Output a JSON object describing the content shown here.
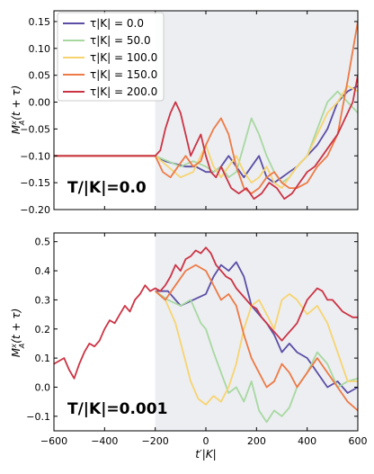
{
  "chart_data": [
    {
      "type": "line",
      "panel_label": "T/|K|=0.0",
      "ylabel": "M_A^x(t + τ)",
      "xlabel": "",
      "xlim": [
        -600,
        600
      ],
      "ylim": [
        -0.2,
        0.17
      ],
      "yticks": [
        -0.2,
        -0.15,
        -0.1,
        -0.05,
        0.0,
        0.05,
        0.1,
        0.15
      ],
      "ytick_labels": [
        "−0.20",
        "−0.15",
        "−0.10",
        "−0.05",
        "0.00",
        "0.05",
        "0.10",
        "0.15"
      ],
      "xticks": [
        -600,
        -400,
        -200,
        0,
        200,
        400,
        600
      ],
      "shaded_region": [
        -200,
        600
      ],
      "legend": {
        "placement": "top-left",
        "entries": [
          "τ|K| = 0.0",
          "τ|K| = 50.0",
          "τ|K| = 100.0",
          "τ|K| = 150.0",
          "τ|K| = 200.0"
        ]
      },
      "series": [
        {
          "name": "τ|K| = 0.0",
          "color": "#5b4ea5",
          "x": [
            -600,
            -200,
            -160,
            -120,
            -80,
            -40,
            0,
            30,
            60,
            90,
            120,
            150,
            180,
            210,
            240,
            270,
            300,
            330,
            360,
            400,
            440,
            480,
            520,
            560,
            600
          ],
          "y": [
            -0.1,
            -0.1,
            -0.11,
            -0.115,
            -0.12,
            -0.12,
            -0.13,
            -0.13,
            -0.12,
            -0.1,
            -0.12,
            -0.14,
            -0.12,
            -0.1,
            -0.14,
            -0.15,
            -0.14,
            -0.13,
            -0.12,
            -0.1,
            -0.08,
            -0.05,
            0.0,
            0.02,
            0.03
          ]
        },
        {
          "name": "τ|K| = 50.0",
          "color": "#a8d8a0",
          "x": [
            -600,
            -200,
            -150,
            -100,
            -50,
            0,
            30,
            60,
            90,
            120,
            150,
            180,
            210,
            240,
            270,
            300,
            330,
            360,
            400,
            440,
            480,
            520,
            560,
            600
          ],
          "y": [
            -0.1,
            -0.1,
            -0.11,
            -0.12,
            -0.11,
            -0.12,
            -0.13,
            -0.12,
            -0.14,
            -0.13,
            -0.08,
            -0.03,
            -0.06,
            -0.1,
            -0.13,
            -0.15,
            -0.14,
            -0.12,
            -0.1,
            -0.05,
            0.0,
            0.02,
            0.0,
            -0.02
          ]
        },
        {
          "name": "τ|K| = 100.0",
          "color": "#f7d470",
          "x": [
            -600,
            -200,
            -150,
            -100,
            -50,
            -20,
            0,
            30,
            60,
            90,
            120,
            150,
            180,
            210,
            240,
            270,
            300,
            330,
            360,
            400,
            440,
            480,
            520,
            560,
            600
          ],
          "y": [
            -0.1,
            -0.1,
            -0.12,
            -0.14,
            -0.13,
            -0.1,
            -0.08,
            -0.12,
            -0.14,
            -0.12,
            -0.1,
            -0.13,
            -0.15,
            -0.14,
            -0.12,
            -0.15,
            -0.16,
            -0.14,
            -0.12,
            -0.1,
            -0.06,
            -0.02,
            0.0,
            0.03,
            0.02
          ]
        },
        {
          "name": "τ|K| = 150.0",
          "color": "#ee7a45",
          "x": [
            -600,
            -200,
            -170,
            -140,
            -110,
            -80,
            -50,
            -20,
            0,
            30,
            60,
            90,
            120,
            150,
            180,
            210,
            240,
            270,
            300,
            330,
            360,
            400,
            440,
            480,
            520,
            560,
            600
          ],
          "y": [
            -0.1,
            -0.1,
            -0.13,
            -0.14,
            -0.12,
            -0.1,
            -0.12,
            -0.11,
            -0.08,
            -0.05,
            -0.03,
            -0.06,
            -0.12,
            -0.16,
            -0.17,
            -0.16,
            -0.14,
            -0.13,
            -0.15,
            -0.16,
            -0.16,
            -0.15,
            -0.12,
            -0.1,
            -0.06,
            0.04,
            0.15
          ]
        },
        {
          "name": "τ|K| = 200.0",
          "color": "#cc3344",
          "x": [
            -600,
            -200,
            -180,
            -160,
            -140,
            -120,
            -100,
            -80,
            -60,
            -40,
            -20,
            0,
            20,
            40,
            60,
            80,
            100,
            130,
            160,
            190,
            220,
            250,
            280,
            310,
            340,
            370,
            400,
            430,
            460,
            490,
            520,
            550,
            580,
            600
          ],
          "y": [
            -0.1,
            -0.1,
            -0.09,
            -0.05,
            -0.02,
            0.0,
            -0.02,
            -0.06,
            -0.1,
            -0.08,
            -0.06,
            -0.1,
            -0.13,
            -0.14,
            -0.12,
            -0.14,
            -0.16,
            -0.17,
            -0.16,
            -0.18,
            -0.17,
            -0.15,
            -0.16,
            -0.18,
            -0.17,
            -0.15,
            -0.13,
            -0.12,
            -0.1,
            -0.08,
            -0.06,
            -0.03,
            0.0,
            0.05
          ]
        }
      ]
    },
    {
      "type": "line",
      "panel_label": "T/|K|=0.001",
      "ylabel": "M_A^x(t + τ)",
      "xlabel": "t′|K|",
      "xlim": [
        -600,
        600
      ],
      "ylim": [
        -0.15,
        0.53
      ],
      "yticks": [
        -0.1,
        0.0,
        0.1,
        0.2,
        0.3,
        0.4,
        0.5
      ],
      "ytick_labels": [
        "−0.1",
        "0.0",
        "0.1",
        "0.2",
        "0.3",
        "0.4",
        "0.5"
      ],
      "xticks": [
        -600,
        -400,
        -200,
        0,
        200,
        400,
        600
      ],
      "xtick_labels": [
        "−600",
        "−400",
        "−200",
        "0",
        "200",
        "400",
        "600"
      ],
      "shaded_region": [
        -200,
        600
      ],
      "series": [
        {
          "name": "τ|K| = 0.0",
          "color": "#5b4ea5",
          "x": [
            -200,
            -150,
            -100,
            -50,
            0,
            30,
            60,
            90,
            120,
            150,
            180,
            210,
            240,
            270,
            300,
            330,
            360,
            400,
            440,
            480,
            520,
            560,
            600
          ],
          "y": [
            0.33,
            0.33,
            0.28,
            0.3,
            0.32,
            0.38,
            0.42,
            0.4,
            0.43,
            0.38,
            0.28,
            0.25,
            0.22,
            0.18,
            0.12,
            0.15,
            0.12,
            0.1,
            0.05,
            0.0,
            0.02,
            -0.02,
            0.0
          ]
        },
        {
          "name": "τ|K| = 50.0",
          "color": "#a8d8a0",
          "x": [
            -200,
            -150,
            -100,
            -60,
            -20,
            0,
            30,
            60,
            90,
            120,
            150,
            180,
            210,
            240,
            270,
            300,
            330,
            360,
            400,
            440,
            480,
            520,
            560,
            600
          ],
          "y": [
            0.33,
            0.3,
            0.28,
            0.3,
            0.22,
            0.2,
            0.12,
            0.05,
            -0.02,
            0.0,
            -0.05,
            0.02,
            -0.08,
            -0.12,
            -0.08,
            -0.1,
            -0.07,
            0.0,
            0.05,
            0.12,
            0.08,
            0.0,
            0.02,
            0.03
          ]
        },
        {
          "name": "τ|K| = 100.0",
          "color": "#f7d470",
          "x": [
            -200,
            -160,
            -120,
            -90,
            -60,
            -30,
            0,
            30,
            60,
            90,
            120,
            150,
            180,
            210,
            240,
            270,
            300,
            330,
            360,
            400,
            440,
            480,
            520,
            560,
            600
          ],
          "y": [
            0.33,
            0.3,
            0.22,
            0.12,
            0.02,
            -0.04,
            -0.06,
            -0.03,
            -0.05,
            0.0,
            0.08,
            0.2,
            0.28,
            0.3,
            0.25,
            0.2,
            0.3,
            0.32,
            0.3,
            0.25,
            0.28,
            0.22,
            0.12,
            0.02,
            0.02
          ]
        },
        {
          "name": "τ|K| = 150.0",
          "color": "#ee7a45",
          "x": [
            -200,
            -160,
            -120,
            -80,
            -40,
            0,
            30,
            60,
            90,
            120,
            150,
            180,
            210,
            240,
            270,
            300,
            330,
            360,
            400,
            440,
            480,
            520,
            560,
            600
          ],
          "y": [
            0.33,
            0.3,
            0.35,
            0.4,
            0.42,
            0.4,
            0.35,
            0.3,
            0.32,
            0.28,
            0.18,
            0.1,
            0.05,
            0.0,
            0.02,
            0.08,
            0.05,
            0.0,
            0.05,
            0.1,
            0.05,
            0.0,
            -0.05,
            -0.08
          ]
        },
        {
          "name": "τ|K| = 200.0",
          "color": "#cc3344",
          "x": [
            -600,
            -580,
            -560,
            -540,
            -520,
            -500,
            -480,
            -460,
            -440,
            -420,
            -400,
            -380,
            -360,
            -340,
            -320,
            -300,
            -280,
            -260,
            -240,
            -220,
            -200,
            -180,
            -160,
            -140,
            -120,
            -100,
            -80,
            -60,
            -40,
            -20,
            0,
            20,
            40,
            60,
            80,
            100,
            120,
            140,
            160,
            180,
            200,
            220,
            240,
            260,
            280,
            300,
            320,
            340,
            360,
            380,
            400,
            420,
            440,
            460,
            480,
            500,
            520,
            540,
            560,
            580,
            600
          ],
          "y": [
            0.08,
            0.09,
            0.1,
            0.06,
            0.03,
            0.08,
            0.12,
            0.15,
            0.14,
            0.16,
            0.2,
            0.23,
            0.22,
            0.25,
            0.28,
            0.26,
            0.3,
            0.32,
            0.35,
            0.33,
            0.34,
            0.33,
            0.35,
            0.38,
            0.42,
            0.4,
            0.44,
            0.45,
            0.47,
            0.46,
            0.48,
            0.46,
            0.42,
            0.4,
            0.38,
            0.37,
            0.34,
            0.32,
            0.3,
            0.28,
            0.27,
            0.24,
            0.22,
            0.2,
            0.18,
            0.16,
            0.18,
            0.2,
            0.22,
            0.26,
            0.3,
            0.32,
            0.34,
            0.33,
            0.3,
            0.3,
            0.28,
            0.26,
            0.25,
            0.24,
            0.24
          ]
        }
      ]
    }
  ]
}
